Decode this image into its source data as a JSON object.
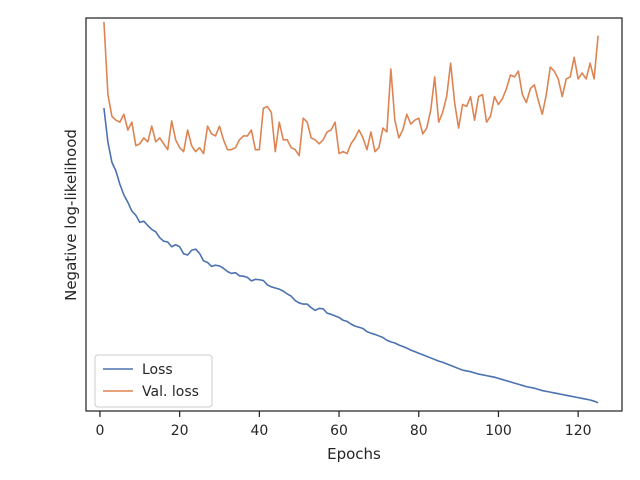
{
  "chart_data": {
    "type": "line",
    "xlabel": "Epochs",
    "ylabel": "Negative log-likelihood",
    "xlim": [
      -3.5,
      131
    ],
    "ylim": [
      0,
      100
    ],
    "xticks": [
      0,
      20,
      40,
      60,
      80,
      100,
      120
    ],
    "yticks_shown": false,
    "grid": false,
    "legend_position": "lower-left",
    "x": [
      1,
      2,
      3,
      4,
      5,
      6,
      7,
      8,
      9,
      10,
      11,
      12,
      13,
      14,
      15,
      16,
      17,
      18,
      19,
      20,
      21,
      22,
      23,
      24,
      25,
      26,
      27,
      28,
      29,
      30,
      31,
      32,
      33,
      34,
      35,
      36,
      37,
      38,
      39,
      40,
      41,
      42,
      43,
      44,
      45,
      46,
      47,
      48,
      49,
      50,
      51,
      52,
      53,
      54,
      55,
      56,
      57,
      58,
      59,
      60,
      61,
      62,
      63,
      64,
      65,
      66,
      67,
      68,
      69,
      70,
      71,
      72,
      73,
      74,
      75,
      76,
      77,
      78,
      79,
      80,
      81,
      82,
      83,
      84,
      85,
      86,
      87,
      88,
      89,
      90,
      91,
      92,
      93,
      94,
      95,
      96,
      97,
      98,
      99,
      100,
      101,
      102,
      103,
      104,
      105,
      106,
      107,
      108,
      109,
      110,
      111,
      112,
      113,
      114,
      115,
      116,
      117,
      118,
      119,
      120,
      121,
      122,
      123,
      124,
      125
    ],
    "series": [
      {
        "name": "Loss",
        "color": "#4c72b0",
        "values": [
          77.1,
          68.4,
          63.3,
          61.1,
          57.7,
          55.0,
          53.1,
          50.9,
          49.8,
          48.0,
          48.3,
          47.2,
          46.2,
          45.6,
          44.1,
          43.2,
          43.0,
          41.8,
          42.3,
          41.8,
          40.0,
          39.7,
          40.9,
          41.2,
          40.1,
          38.2,
          37.8,
          36.8,
          37.1,
          36.9,
          36.3,
          35.5,
          35.0,
          35.2,
          34.4,
          34.3,
          34.0,
          33.1,
          33.5,
          33.4,
          33.2,
          32.1,
          31.6,
          31.3,
          31.0,
          30.5,
          29.8,
          29.2,
          28.1,
          27.5,
          27.2,
          27.2,
          26.3,
          25.6,
          26.1,
          26.0,
          24.9,
          24.6,
          24.2,
          23.8,
          23.1,
          22.8,
          22.1,
          21.6,
          21.3,
          21.0,
          20.2,
          19.8,
          19.5,
          19.1,
          18.7,
          18.0,
          17.6,
          17.3,
          16.8,
          16.4,
          16.0,
          15.5,
          15.1,
          14.7,
          14.3,
          13.9,
          13.5,
          13.1,
          12.7,
          12.4,
          12.0,
          11.6,
          11.2,
          10.8,
          10.4,
          10.2,
          10.0,
          9.7,
          9.4,
          9.2,
          9.0,
          8.8,
          8.6,
          8.3,
          8.0,
          7.7,
          7.4,
          7.1,
          6.8,
          6.5,
          6.2,
          6.0,
          5.8,
          5.5,
          5.2,
          5.0,
          4.8,
          4.6,
          4.4,
          4.2,
          4.0,
          3.8,
          3.6,
          3.4,
          3.2,
          3.0,
          2.8,
          2.5,
          2.1
        ]
      },
      {
        "name": "Val. loss",
        "color": "#dd8452",
        "values": [
          99.0,
          80.5,
          75.0,
          74.0,
          73.5,
          75.5,
          71.5,
          73.5,
          67.5,
          68.0,
          69.5,
          68.5,
          72.5,
          68.5,
          69.5,
          68.0,
          66.5,
          73.8,
          69.0,
          67.0,
          66.0,
          71.5,
          67.5,
          66.0,
          67.0,
          65.5,
          72.5,
          70.5,
          70.0,
          72.5,
          69.0,
          66.5,
          66.5,
          67.0,
          69.0,
          70.0,
          70.0,
          71.5,
          66.5,
          66.5,
          77.0,
          77.5,
          76.0,
          66.0,
          73.5,
          69.0,
          69.0,
          67.0,
          66.5,
          65.0,
          74.5,
          73.5,
          69.5,
          69.0,
          68.0,
          69.0,
          71.0,
          71.5,
          73.5,
          65.5,
          66.0,
          65.5,
          68.0,
          69.5,
          71.5,
          69.5,
          66.5,
          71.0,
          66.0,
          67.0,
          72.0,
          71.0,
          87.0,
          74.0,
          69.5,
          71.5,
          75.5,
          73.0,
          74.0,
          74.5,
          70.5,
          72.0,
          76.5,
          85.0,
          73.5,
          76.0,
          80.0,
          88.5,
          78.5,
          72.0,
          78.0,
          77.5,
          80.0,
          74.0,
          80.0,
          80.5,
          73.5,
          75.0,
          80.0,
          78.0,
          79.5,
          82.0,
          85.5,
          85.0,
          86.5,
          80.5,
          78.5,
          82.0,
          83.0,
          79.0,
          75.5,
          80.5,
          87.5,
          86.5,
          84.5,
          80.0,
          84.5,
          85.0,
          90.0,
          84.5,
          86.0,
          84.5,
          88.5,
          84.5,
          95.5
        ]
      }
    ]
  }
}
